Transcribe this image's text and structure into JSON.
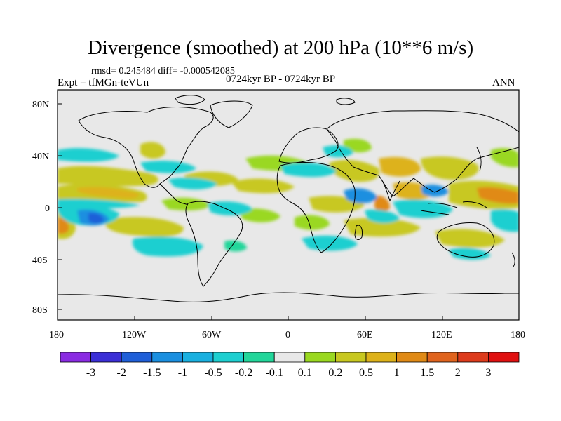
{
  "title": "Divergence (smoothed) at 200 hPa (10**6 m/s)",
  "stats_line": "rmsd= 0.245484  diff= -0.000542085",
  "experiment_label": "Expt = tfMGn-teVUn",
  "period_label": "0724kyr BP - 0724kyr BP",
  "season_label": "ANN",
  "map": {
    "projection": "cylindrical equidistant",
    "lat_ticks": [
      "80N",
      "40N",
      "0",
      "40S",
      "80S"
    ],
    "lon_ticks": [
      "180",
      "120W",
      "60W",
      "0",
      "60E",
      "120E",
      "180"
    ],
    "lat_values": [
      80,
      40,
      0,
      -40,
      -80
    ],
    "lon_values": [
      -180,
      -120,
      -60,
      0,
      60,
      120,
      180
    ]
  },
  "colorbar": {
    "labels": [
      "-3",
      "-2",
      "-1.5",
      "-1",
      "-0.5",
      "-0.2",
      "-0.1",
      "0.1",
      "0.2",
      "0.5",
      "1",
      "1.5",
      "2",
      "3"
    ],
    "colors": [
      "#8a2be2",
      "#3b2fd6",
      "#1f5fd8",
      "#1a8fe0",
      "#19b0e0",
      "#1dcfd0",
      "#22d69a",
      "#e8e8e8",
      "#9ad820",
      "#c8c820",
      "#ddb21a",
      "#e08a16",
      "#e0641e",
      "#dd3b1c",
      "#e01010"
    ]
  },
  "colors": {
    "land_outline": "#000000",
    "background": "#e8e8e8"
  }
}
